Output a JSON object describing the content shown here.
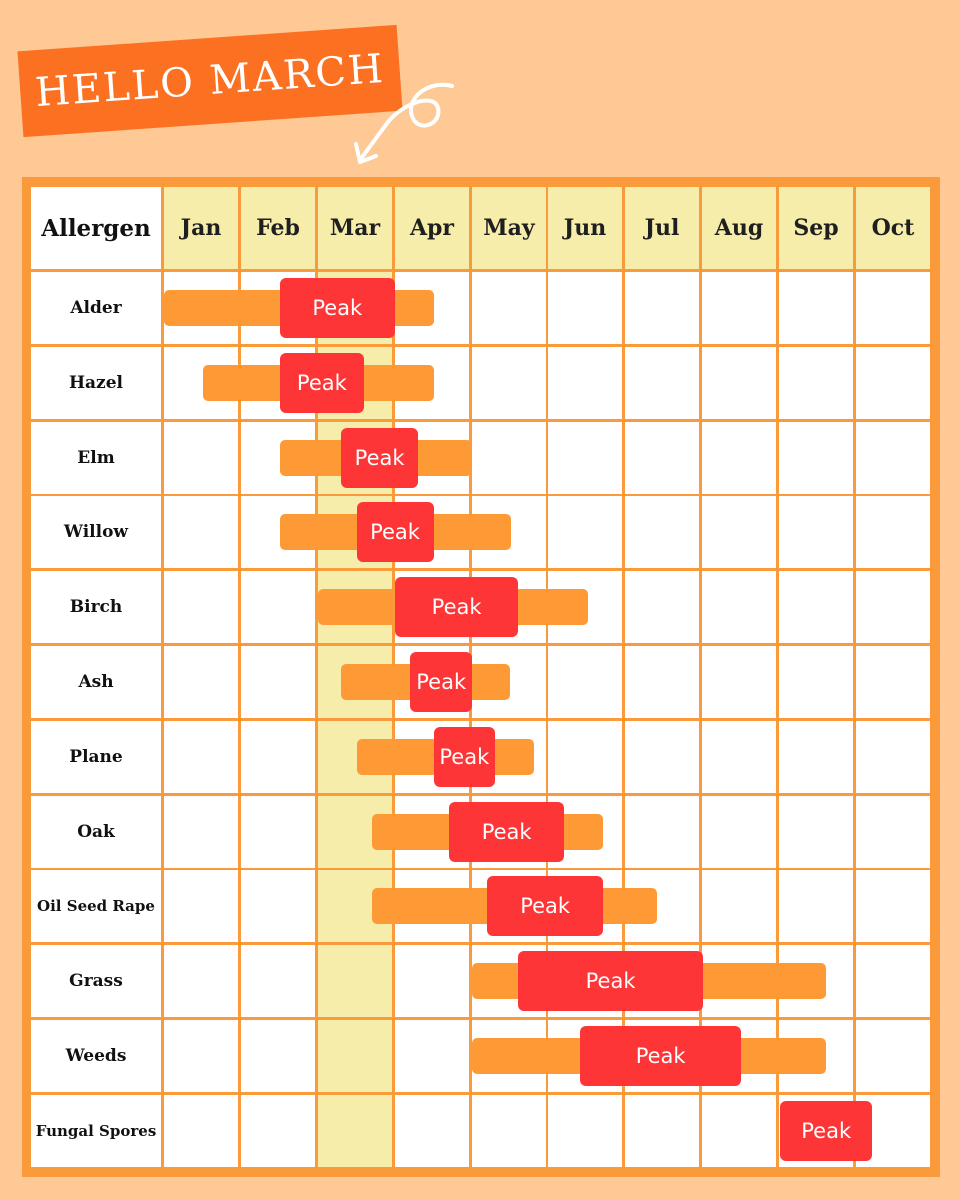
{
  "banner": {
    "title": "HELLO MARCH"
  },
  "colors": {
    "background": "#FEC995",
    "banner": "#FB7021",
    "grid_line": "#FB9A3A",
    "header_fill": "#F6EDAA",
    "highlight_column": "#F6EDAA",
    "range_bar": "#FD9A36",
    "peak": "#FD3536"
  },
  "chart_data": {
    "type": "table",
    "row_header": "Allergen",
    "months": [
      "Jan",
      "Feb",
      "Mar",
      "Apr",
      "May",
      "Jun",
      "Jul",
      "Aug",
      "Sep",
      "Oct"
    ],
    "highlighted_month": "Mar",
    "peak_label": "Peak",
    "rows": [
      {
        "allergen": "Alder",
        "season": [
          0.0,
          3.5
        ],
        "peak": [
          1.5,
          3.0
        ]
      },
      {
        "allergen": "Hazel",
        "season": [
          0.5,
          3.5
        ],
        "peak": [
          1.5,
          2.6
        ]
      },
      {
        "allergen": "Elm",
        "season": [
          1.5,
          4.0
        ],
        "peak": [
          2.3,
          3.3
        ]
      },
      {
        "allergen": "Willow",
        "season": [
          1.5,
          4.5
        ],
        "peak": [
          2.5,
          3.5
        ]
      },
      {
        "allergen": "Birch",
        "season": [
          2.0,
          5.5
        ],
        "peak": [
          3.0,
          4.6
        ]
      },
      {
        "allergen": "Ash",
        "season": [
          2.3,
          4.5
        ],
        "peak": [
          3.2,
          4.0
        ]
      },
      {
        "allergen": "Plane",
        "season": [
          2.5,
          4.8
        ],
        "peak": [
          3.5,
          4.3
        ]
      },
      {
        "allergen": "Oak",
        "season": [
          2.7,
          5.7
        ],
        "peak": [
          3.7,
          5.2
        ]
      },
      {
        "allergen": "Oil Seed Rape",
        "season": [
          2.7,
          6.4
        ],
        "peak": [
          4.2,
          5.7
        ]
      },
      {
        "allergen": "Grass",
        "season": [
          4.0,
          8.6
        ],
        "peak": [
          4.6,
          7.0
        ]
      },
      {
        "allergen": "Weeds",
        "season": [
          4.0,
          8.6
        ],
        "peak": [
          5.4,
          7.5
        ]
      },
      {
        "allergen": "Fungal Spores",
        "season": null,
        "peak": [
          8.0,
          9.2
        ]
      }
    ]
  }
}
